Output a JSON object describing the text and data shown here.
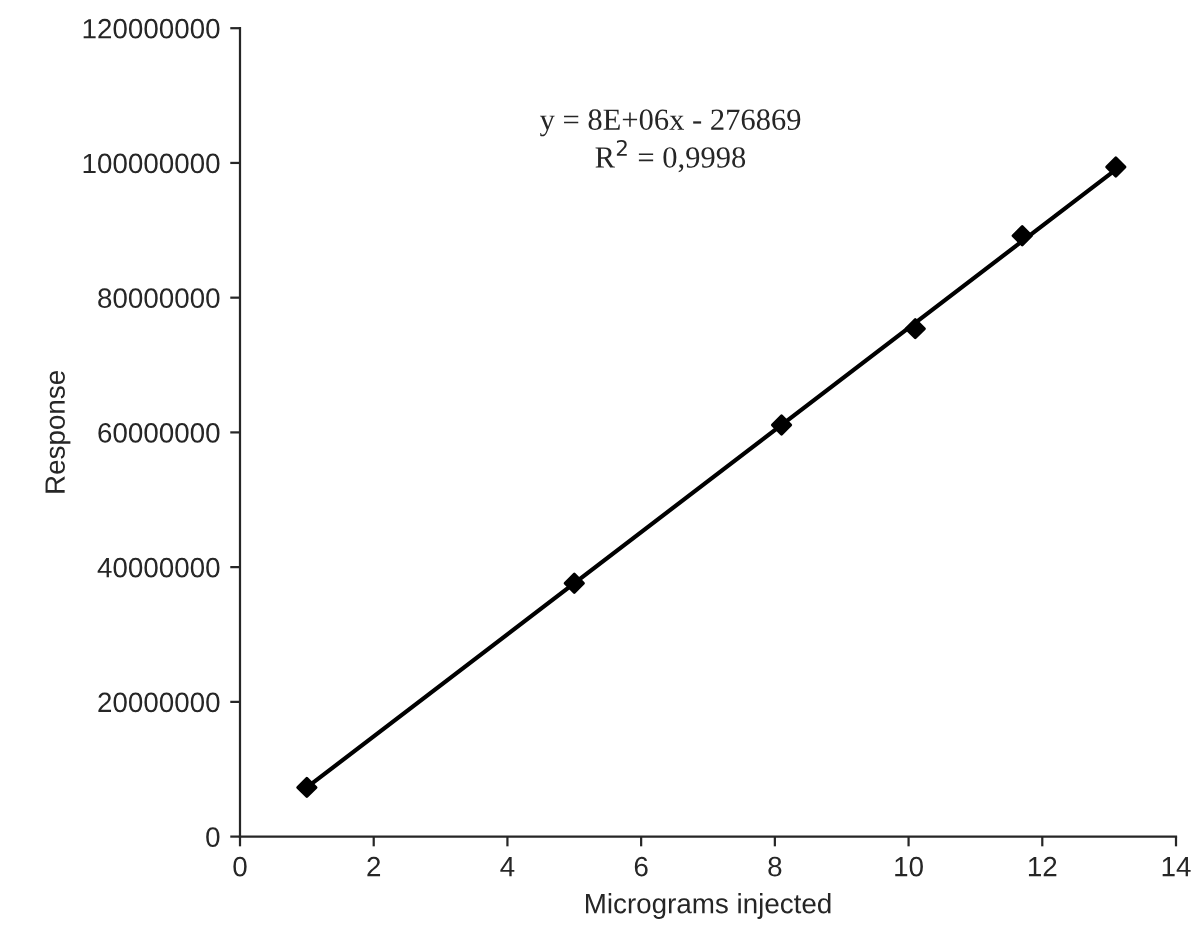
{
  "chart_data": {
    "type": "scatter",
    "xlabel": "Micrograms injected",
    "ylabel": "Response",
    "series": [
      {
        "color": "#000000",
        "marker": "diamond",
        "x": [
          1,
          5,
          8.1,
          10.1,
          11.7,
          13.1
        ],
        "values": [
          7300000,
          37600000,
          61100000,
          75400000,
          89200000,
          99400000
        ]
      },
      {
        "type": "line",
        "color": "#000000",
        "marker": "none",
        "line_style": "solid",
        "x": [
          1,
          13.1
        ],
        "values": [
          7300000,
          99000000
        ]
      }
    ],
    "grid": false,
    "xlim": [
      0,
      14
    ],
    "xticks": [
      0,
      2,
      4,
      6,
      8,
      10,
      12,
      14
    ],
    "ylim": [
      0,
      120000000
    ],
    "yticks": [
      0,
      20000000,
      40000000,
      60000000,
      80000000,
      100000000,
      120000000
    ],
    "annotations": [
      "y = 8E+06x - 276869\nR$^{2}$ = 0,9998"
    ]
  }
}
